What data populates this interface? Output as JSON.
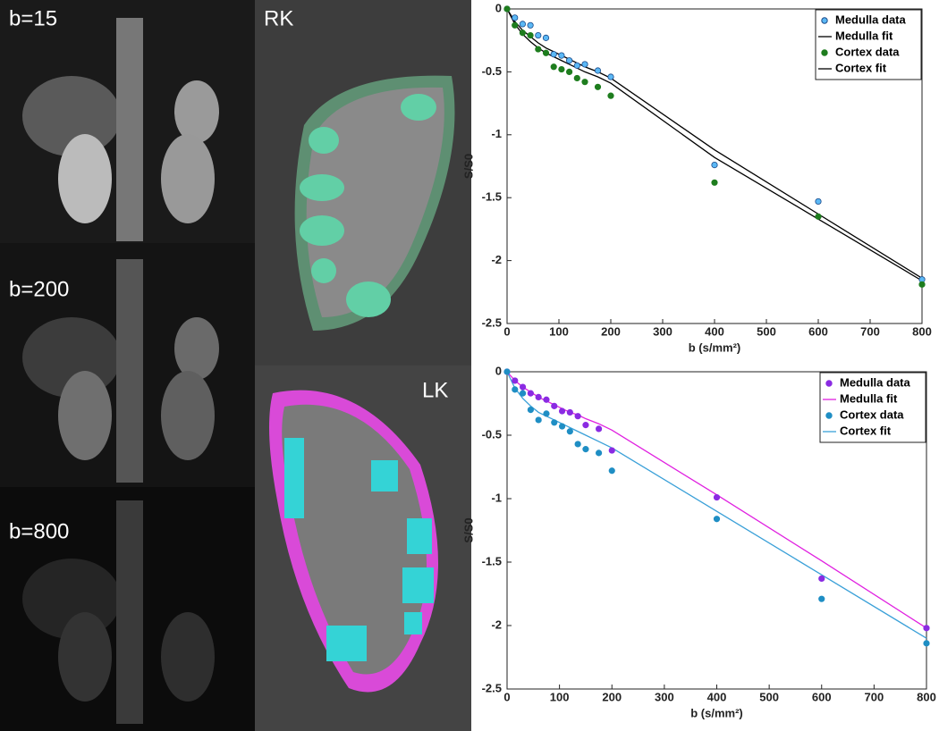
{
  "image_labels": [
    "b=15",
    "b=200",
    "b=800",
    "RK",
    "LK"
  ],
  "chart_data": [
    {
      "type": "scatter-line",
      "xlabel": "b (s/mm²)",
      "ylabel": "S/S0",
      "x": [
        0,
        15,
        30,
        45,
        60,
        75,
        90,
        105,
        120,
        135,
        150,
        175,
        200,
        400,
        600,
        800
      ],
      "xlim": [
        0,
        800
      ],
      "ylim": [
        -2.5,
        0
      ],
      "xticks": [
        0,
        100,
        200,
        300,
        400,
        500,
        600,
        700,
        800
      ],
      "yticks": [
        -2.5,
        -2,
        -1.5,
        -1,
        -0.5,
        0
      ],
      "legend": "upper-right",
      "series": [
        {
          "name": "Medulla data",
          "color": "#5bb8f5",
          "mode": "markers",
          "values": [
            0,
            -0.07,
            -0.12,
            -0.13,
            -0.21,
            -0.23,
            -0.36,
            -0.37,
            -0.41,
            -0.45,
            -0.44,
            -0.49,
            -0.54,
            -1.24,
            -1.53,
            -2.15
          ]
        },
        {
          "name": "Medulla fit",
          "color": "#000000",
          "mode": "line",
          "values": [
            0,
            -0.1,
            -0.17,
            -0.22,
            -0.27,
            -0.31,
            -0.34,
            -0.37,
            -0.4,
            -0.43,
            -0.46,
            -0.5,
            -0.55,
            -1.12,
            -1.63,
            -2.14
          ]
        },
        {
          "name": "Cortex data",
          "color": "#1e7d1e",
          "mode": "markers",
          "values": [
            0,
            -0.13,
            -0.19,
            -0.21,
            -0.32,
            -0.35,
            -0.46,
            -0.48,
            -0.5,
            -0.55,
            -0.58,
            -0.62,
            -0.69,
            -1.38,
            -1.65,
            -2.19
          ]
        },
        {
          "name": "Cortex fit",
          "color": "#000000",
          "mode": "line",
          "values": [
            0,
            -0.12,
            -0.2,
            -0.26,
            -0.31,
            -0.35,
            -0.38,
            -0.41,
            -0.44,
            -0.47,
            -0.5,
            -0.54,
            -0.59,
            -1.18,
            -1.67,
            -2.16
          ]
        }
      ]
    },
    {
      "type": "scatter-line",
      "xlabel": "b (s/mm²)",
      "ylabel": "S/S0",
      "x": [
        0,
        15,
        30,
        45,
        60,
        75,
        90,
        105,
        120,
        135,
        150,
        175,
        200,
        400,
        600,
        800
      ],
      "xlim": [
        0,
        800
      ],
      "ylim": [
        -2.5,
        0
      ],
      "xticks": [
        0,
        100,
        200,
        300,
        400,
        500,
        600,
        700,
        800
      ],
      "yticks": [
        -2.5,
        -2,
        -1.5,
        -1,
        -0.5,
        0
      ],
      "legend": "upper-right",
      "series": [
        {
          "name": "Medulla data",
          "color": "#8a2be2",
          "mode": "markers",
          "values": [
            0,
            -0.07,
            -0.12,
            -0.17,
            -0.2,
            -0.22,
            -0.27,
            -0.31,
            -0.32,
            -0.35,
            -0.42,
            -0.45,
            -0.62,
            -0.99,
            -1.63,
            -2.02
          ]
        },
        {
          "name": "Medulla fit",
          "color": "#e020e0",
          "mode": "line",
          "values": [
            0,
            -0.07,
            -0.12,
            -0.16,
            -0.2,
            -0.23,
            -0.26,
            -0.29,
            -0.32,
            -0.34,
            -0.37,
            -0.41,
            -0.46,
            -0.97,
            -1.49,
            -2.02
          ]
        },
        {
          "name": "Cortex data",
          "color": "#1f8ec4",
          "mode": "markers",
          "values": [
            0,
            -0.14,
            -0.17,
            -0.3,
            -0.38,
            -0.33,
            -0.4,
            -0.43,
            -0.47,
            -0.57,
            -0.61,
            -0.64,
            -0.78,
            -1.16,
            -1.79,
            -2.14
          ]
        },
        {
          "name": "Cortex fit",
          "color": "#3aa0d8",
          "mode": "line",
          "values": [
            0,
            -0.13,
            -0.21,
            -0.27,
            -0.32,
            -0.35,
            -0.38,
            -0.41,
            -0.44,
            -0.47,
            -0.5,
            -0.55,
            -0.6,
            -1.1,
            -1.6,
            -2.1
          ]
        }
      ]
    }
  ]
}
